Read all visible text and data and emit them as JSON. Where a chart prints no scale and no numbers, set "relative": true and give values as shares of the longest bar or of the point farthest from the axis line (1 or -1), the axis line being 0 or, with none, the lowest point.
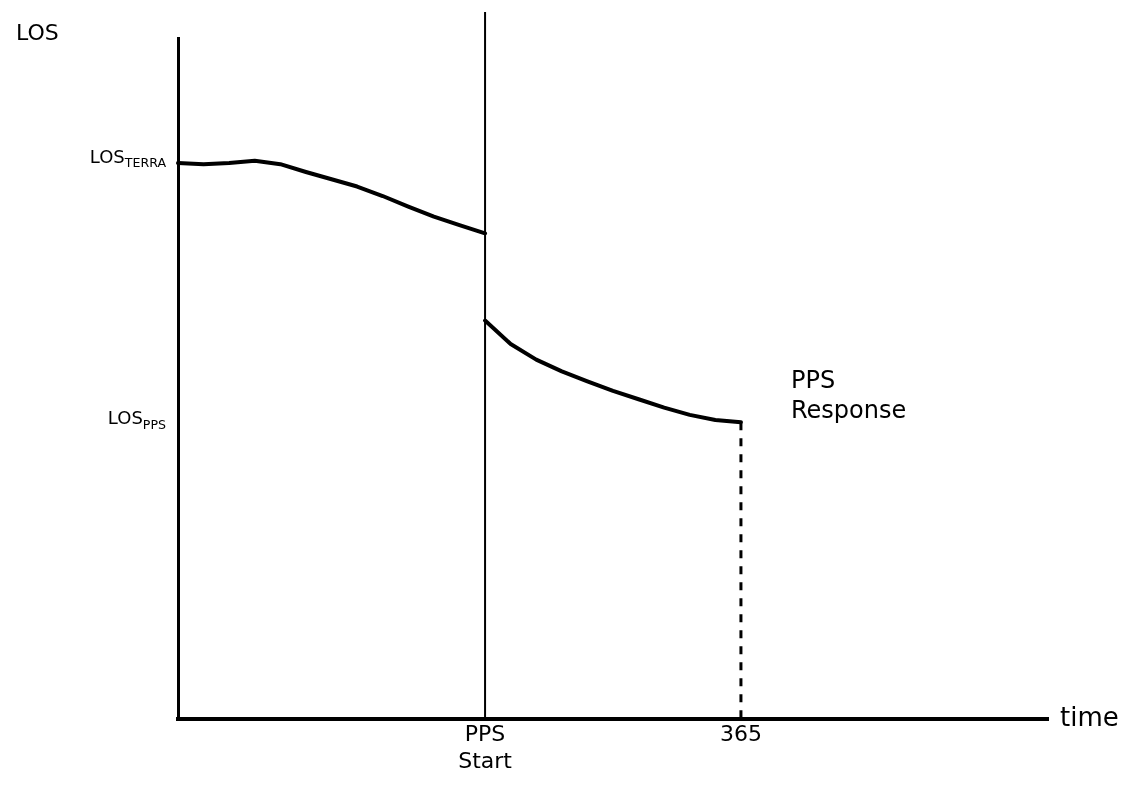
{
  "chart_data": {
    "type": "line",
    "relative": true,
    "xlabel": "time",
    "categories": [
      null,
      null,
      null,
      null,
      null,
      null,
      null,
      null,
      null,
      null,
      null,
      null,
      "PPS Start",
      null,
      null,
      null,
      null,
      null,
      null,
      null,
      null,
      null,
      "365",
      null,
      null,
      null,
      null,
      null,
      null,
      null,
      null,
      null,
      null,
      null,
      null
    ],
    "series": [
      {
        "color": "#000000",
        "values": [
          0.996,
          0.994,
          0.996,
          1.0,
          0.994,
          0.98,
          0.967,
          0.954,
          0.937,
          0.918,
          0.9,
          0.885,
          0.87,
          null,
          null,
          null,
          null,
          null,
          null,
          null,
          null,
          null,
          null,
          null,
          null,
          null,
          null,
          null,
          null,
          null,
          null,
          null,
          null,
          null,
          null
        ]
      },
      {
        "color": "#000000",
        "values": [
          null,
          null,
          null,
          null,
          null,
          null,
          null,
          null,
          null,
          null,
          null,
          null,
          0.714,
          0.672,
          0.644,
          0.623,
          0.605,
          0.588,
          0.573,
          0.558,
          0.545,
          0.536,
          0.532,
          null,
          null,
          null,
          null,
          null,
          null,
          null,
          null,
          null,
          null,
          null,
          null
        ]
      }
    ],
    "ref_lines": [
      {
        "axis": "x",
        "value": "PPS Start",
        "color": "#000000"
      },
      {
        "axis": "x",
        "value": "365",
        "color": "#000000",
        "line_style": "dashed"
      }
    ],
    "annotations": [
      "LOS",
      "LOS$_{TERRA}$",
      "LOS$_{PPS}$",
      {
        "text": "PPS Response",
        "x": "365",
        "y": 0.532
      }
    ],
    "grid": false,
    "legend": false,
    "marker": "none"
  }
}
